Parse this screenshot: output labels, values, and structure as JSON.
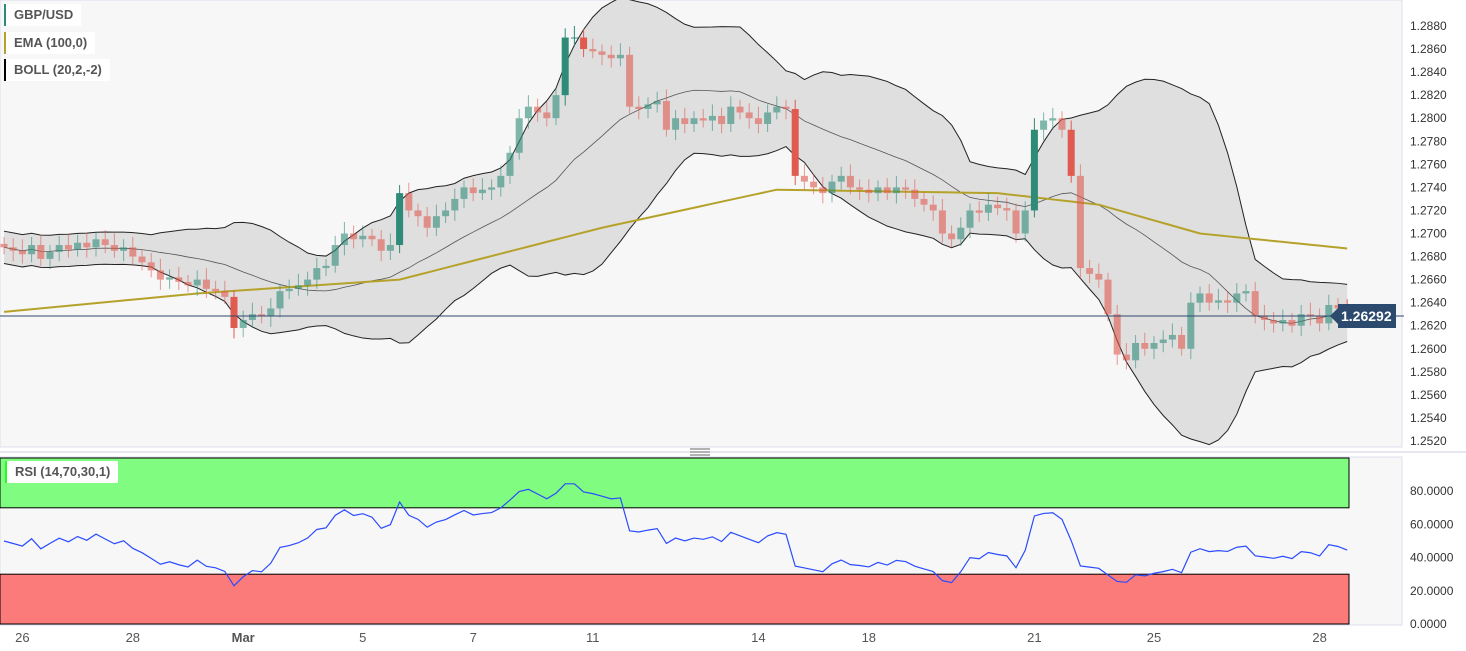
{
  "legend": {
    "symbol": "GBP/USD",
    "ema": "EMA (100,0)",
    "boll": "BOLL (20,2,-2)",
    "rsi": "RSI (14,70,30,1)"
  },
  "colors": {
    "up": "#2e8b78",
    "down": "#e05a4f",
    "ema": "#b5a22a",
    "boll_fill": "#dcdcdc",
    "rsi_line": "#2a4bff",
    "overbought": "#80fc80",
    "oversold": "#fb7b7b",
    "price_line": "#2c4a6e"
  },
  "current_price": "1.26292",
  "chart_data": {
    "type": "candlestick",
    "title": "GBP/USD",
    "ylim": [
      1.251,
      1.2895
    ],
    "y_ticks": [
      "1.2880",
      "1.2860",
      "1.2840",
      "1.2820",
      "1.2800",
      "1.2780",
      "1.2760",
      "1.2740",
      "1.2720",
      "1.2700",
      "1.2680",
      "1.2660",
      "1.2640",
      "1.2620",
      "1.2600",
      "1.2580",
      "1.2560",
      "1.2540",
      "1.2520"
    ],
    "x_ticks": [
      {
        "label": "26",
        "bar": 2
      },
      {
        "label": "28",
        "bar": 14
      },
      {
        "label": "Mar",
        "bar": 26,
        "bold": true
      },
      {
        "label": "5",
        "bar": 39
      },
      {
        "label": "7",
        "bar": 51
      },
      {
        "label": "11",
        "bar": 64
      },
      {
        "label": "14",
        "bar": 82
      },
      {
        "label": "18",
        "bar": 94
      },
      {
        "label": "21",
        "bar": 112
      },
      {
        "label": "25",
        "bar": 125
      },
      {
        "label": "28",
        "bar": 143
      }
    ],
    "closes": [
      1.2688,
      1.2685,
      1.2682,
      1.269,
      1.2678,
      1.2684,
      1.269,
      1.2686,
      1.2692,
      1.2688,
      1.2695,
      1.269,
      1.2685,
      1.2688,
      1.268,
      1.2675,
      1.2668,
      1.266,
      1.2662,
      1.2658,
      1.2655,
      1.266,
      1.2652,
      1.265,
      1.2645,
      1.2618,
      1.2625,
      1.263,
      1.2628,
      1.2635,
      1.265,
      1.2652,
      1.2655,
      1.266,
      1.267,
      1.2672,
      1.269,
      1.27,
      1.2695,
      1.2698,
      1.2695,
      1.2685,
      1.269,
      1.2735,
      1.272,
      1.2715,
      1.2705,
      1.2715,
      1.272,
      1.273,
      1.274,
      1.2735,
      1.2738,
      1.274,
      1.275,
      1.277,
      1.28,
      1.281,
      1.2805,
      1.28,
      1.282,
      1.287,
      1.287,
      1.286,
      1.2858,
      1.2855,
      1.2852,
      1.2855,
      1.281,
      1.2808,
      1.2812,
      1.2815,
      1.279,
      1.28,
      1.2795,
      1.28,
      1.2798,
      1.2802,
      1.2795,
      1.281,
      1.2805,
      1.28,
      1.2795,
      1.2805,
      1.281,
      1.2808,
      1.275,
      1.2745,
      1.274,
      1.2735,
      1.2745,
      1.275,
      1.274,
      1.2738,
      1.2735,
      1.274,
      1.2735,
      1.274,
      1.2738,
      1.273,
      1.2725,
      1.272,
      1.27,
      1.2695,
      1.2705,
      1.272,
      1.2718,
      1.2725,
      1.2722,
      1.272,
      1.27,
      1.272,
      1.279,
      1.2798,
      1.28,
      1.279,
      1.275,
      1.267,
      1.2665,
      1.266,
      1.263,
      1.2595,
      1.259,
      1.2605,
      1.26,
      1.2605,
      1.2608,
      1.2612,
      1.26,
      1.264,
      1.2648,
      1.264,
      1.2642,
      1.264,
      1.2648,
      1.265,
      1.2628,
      1.2625,
      1.2622,
      1.2625,
      1.262,
      1.263,
      1.2628,
      1.2622,
      1.2638,
      1.2635,
      1.2629
    ],
    "ema_keypoints": [
      [
        0,
        1.2632
      ],
      [
        21,
        1.2648
      ],
      [
        43,
        1.266
      ],
      [
        65,
        1.2705
      ],
      [
        84,
        1.2738
      ],
      [
        108,
        1.2735
      ],
      [
        119,
        1.2725
      ],
      [
        130,
        1.27
      ],
      [
        146,
        1.2687
      ]
    ],
    "rsi": {
      "ylim": [
        0,
        100
      ],
      "overbought": 70,
      "oversold": 30,
      "y_ticks": [
        "80.0000",
        "60.0000",
        "40.0000",
        "20.0000",
        "0.0000"
      ]
    }
  }
}
